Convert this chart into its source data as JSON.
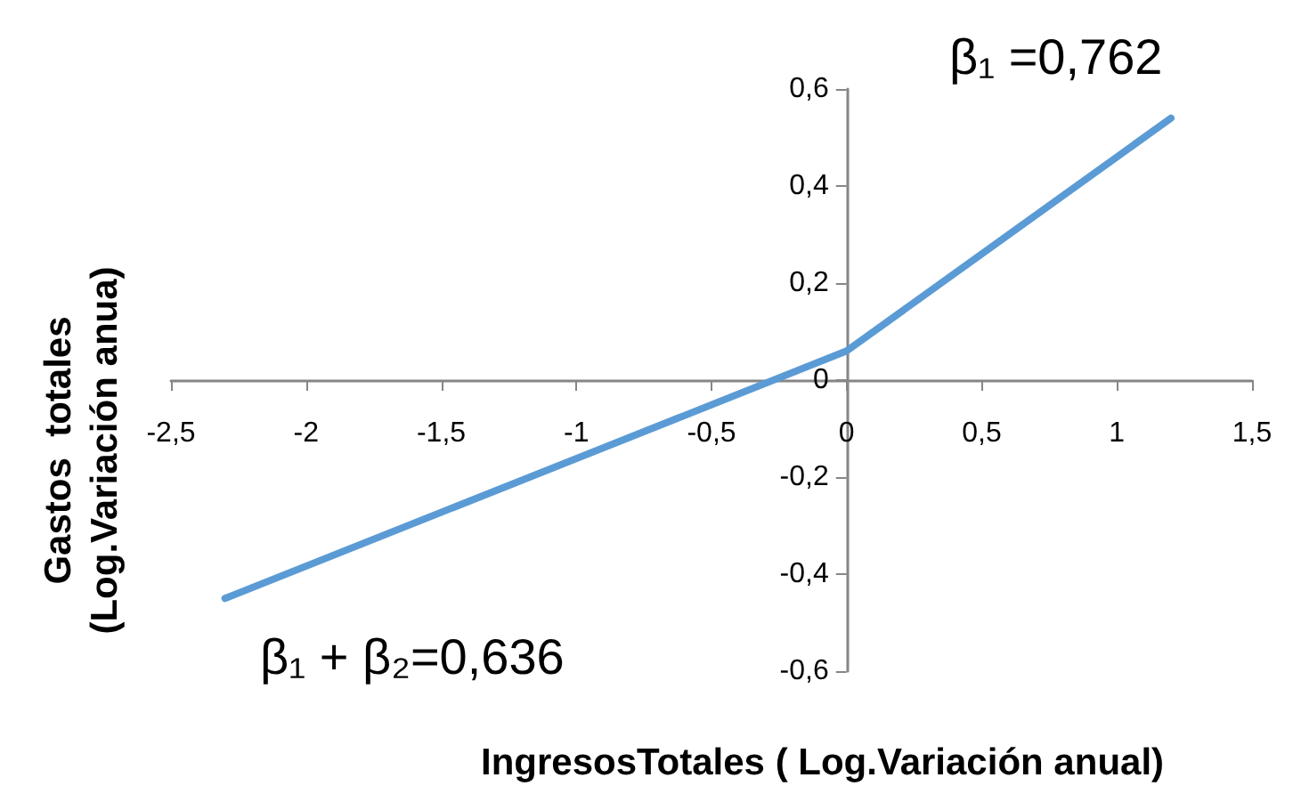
{
  "chart_data": {
    "type": "line",
    "xlabel": "IngresosTotales ( Log.Variación anual)",
    "ylabel": "Gastos  totales\n(Log.Variación anua)",
    "x": [
      -2.3,
      0,
      1.2
    ],
    "series": [
      {
        "color": "#5b9bd5",
        "values": [
          -0.45,
          0.06,
          0.54
        ]
      }
    ],
    "xlim": [
      -2.5,
      1.5
    ],
    "ylim": [
      -0.6,
      0.6
    ],
    "xticks": [
      {
        "value": -2.5,
        "label": "-2,5"
      },
      -2,
      {
        "value": -1.5,
        "label": "-1,5"
      },
      -1,
      {
        "value": -0.5,
        "label": "-0,5"
      },
      0,
      {
        "value": 0.5,
        "label": "0,5"
      },
      1,
      {
        "value": 1.5,
        "label": "1,5"
      }
    ],
    "yticks": [
      {
        "value": -0.6,
        "label": "-0,6"
      },
      {
        "value": -0.4,
        "label": "-0,4"
      },
      {
        "value": -0.2,
        "label": "-0,2"
      },
      0,
      {
        "value": 0.2,
        "label": "0,2"
      },
      {
        "value": 0.4,
        "label": "0,4"
      },
      {
        "value": 0.6,
        "label": "0,6"
      }
    ],
    "annotations": [
      "β₁ =0,762",
      "β₁ + β₂=0,636"
    ],
    "grid": false,
    "marker": "none",
    "line_style": "solid"
  }
}
